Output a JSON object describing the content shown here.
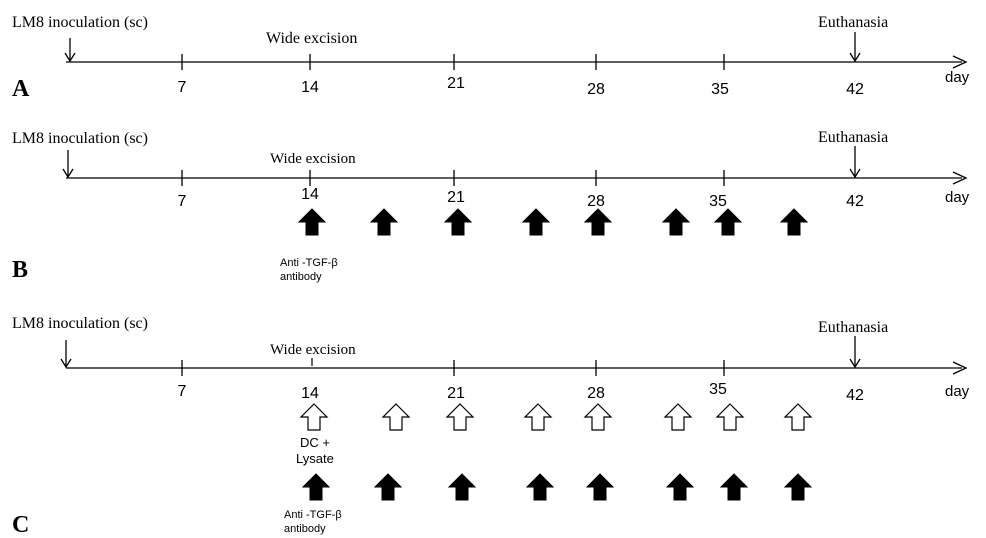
{
  "timeline_unit": "day",
  "panels": [
    {
      "letter": "A",
      "inoculation_label": "LM8 inoculation (sc)",
      "excision_label": "Wide excision",
      "euthanasia_label": "Euthanasia",
      "ticks": [
        "7",
        "14",
        "21",
        "28",
        "35",
        "42"
      ],
      "open_arrows_label": "",
      "filled_arrows_label": "",
      "open_arrow_days": [],
      "filled_arrow_days": []
    },
    {
      "letter": "B",
      "inoculation_label": "LM8 inoculation (sc)",
      "excision_label": "Wide excision",
      "euthanasia_label": "Euthanasia",
      "ticks": [
        "7",
        "14",
        "21",
        "28",
        "35",
        "42"
      ],
      "open_arrows_label": "",
      "filled_arrows_label": "Anti -TGF-β antibody",
      "filled_arrows_label_lines": [
        "Anti -TGF-β",
        "antibody"
      ],
      "open_arrow_days": [],
      "filled_arrow_days": [
        14,
        17.5,
        21,
        24.5,
        28,
        31.5,
        35,
        38
      ]
    },
    {
      "letter": "C",
      "inoculation_label": "LM8 inoculation (sc)",
      "excision_label": "Wide excision",
      "euthanasia_label": "Euthanasia",
      "ticks": [
        "7",
        "14",
        "21",
        "28",
        "35",
        "42"
      ],
      "open_arrows_label": "DC + Lysate",
      "open_arrows_label_lines": [
        "DC +",
        "Lysate"
      ],
      "filled_arrows_label": "Anti -TGF-β antibody",
      "filled_arrows_label_lines": [
        "Anti -TGF-β",
        "antibody"
      ],
      "open_arrow_days": [
        14,
        17.5,
        21,
        24.5,
        28,
        31.5,
        35,
        38
      ],
      "filled_arrow_days": [
        14,
        17.5,
        21,
        24.5,
        28,
        31.5,
        35,
        38
      ]
    }
  ]
}
